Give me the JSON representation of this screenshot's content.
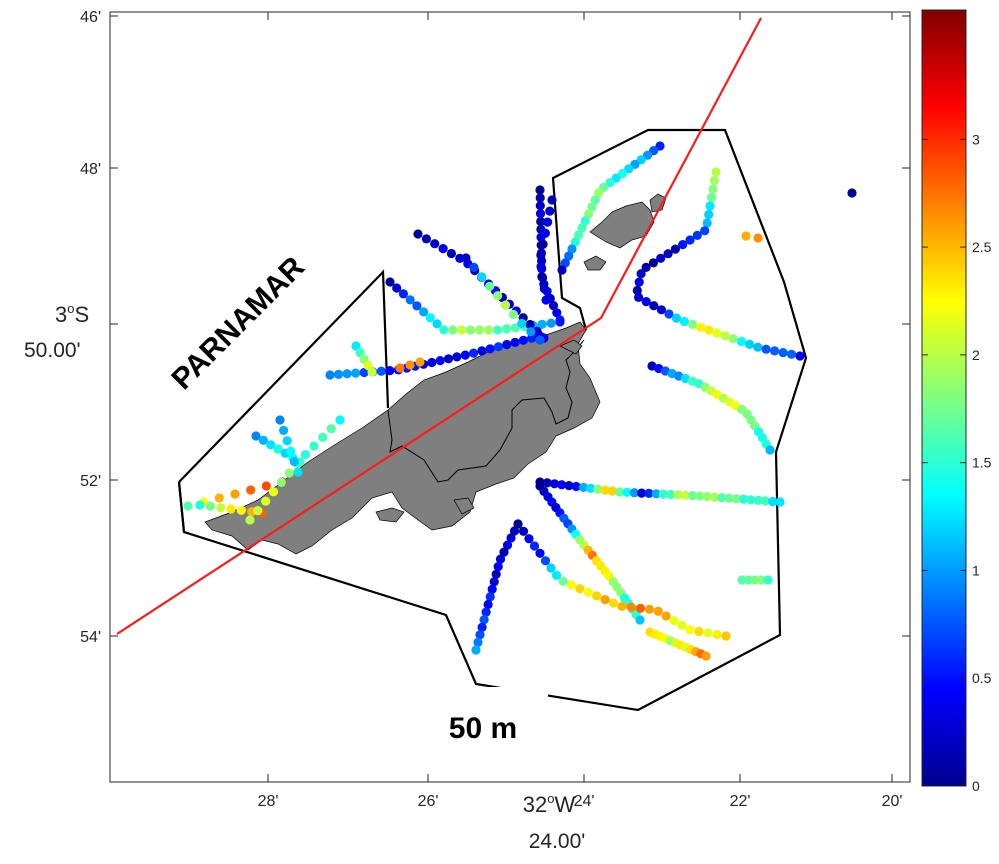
{
  "map": {
    "x_ticks": [
      "28'",
      "26'",
      "24'",
      "22'",
      "20'"
    ],
    "x_center_label_line1": "32",
    "x_center_label_sup": "o",
    "x_center_label_w": "W",
    "x_center_label_line2": "24.00'",
    "y_ticks": [
      "46'",
      "48'",
      "50'",
      "52'",
      "54'"
    ],
    "y_center_label_line1": "3",
    "y_center_label_sup": "o",
    "y_center_label_s": "S",
    "y_center_label_line2": "50.00'",
    "annotation_parnamar": "PARNAMAR",
    "annotation_depth": "50 m",
    "colors": {
      "land": "#7f7f7f",
      "transect": "#ff1a1a",
      "boundary": "#000000"
    }
  },
  "colorbar": {
    "ticks": [
      "0",
      "0.5",
      "1",
      "1.5",
      "2",
      "2.5",
      "3"
    ],
    "range": [
      0,
      3.6
    ],
    "colormap": "jet"
  }
}
